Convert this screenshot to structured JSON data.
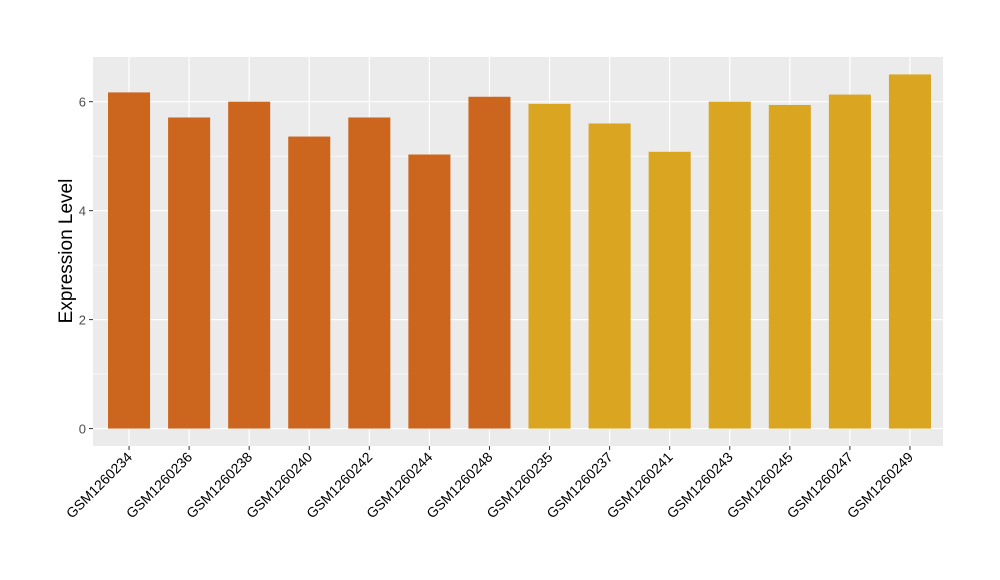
{
  "chart_data": {
    "type": "bar",
    "title": "",
    "xlabel": "",
    "ylabel": "Expression Level",
    "ylim": [
      -0.32,
      6.82
    ],
    "yticks": [
      0,
      2,
      4,
      6
    ],
    "grid": true,
    "categories": [
      "GSM1260234",
      "GSM1260236",
      "GSM1260238",
      "GSM1260240",
      "GSM1260242",
      "GSM1260244",
      "GSM1260248",
      "GSM1260235",
      "GSM1260237",
      "GSM1260241",
      "GSM1260243",
      "GSM1260245",
      "GSM1260247",
      "GSM1260249"
    ],
    "values": [
      6.17,
      5.71,
      6.0,
      5.36,
      5.71,
      5.03,
      6.09,
      5.96,
      5.6,
      5.08,
      6.0,
      5.94,
      6.13,
      6.5
    ],
    "groups": [
      0,
      0,
      0,
      0,
      0,
      0,
      0,
      1,
      1,
      1,
      1,
      1,
      1,
      1
    ],
    "group_colors": [
      "#CC661E",
      "#DAA520"
    ]
  }
}
